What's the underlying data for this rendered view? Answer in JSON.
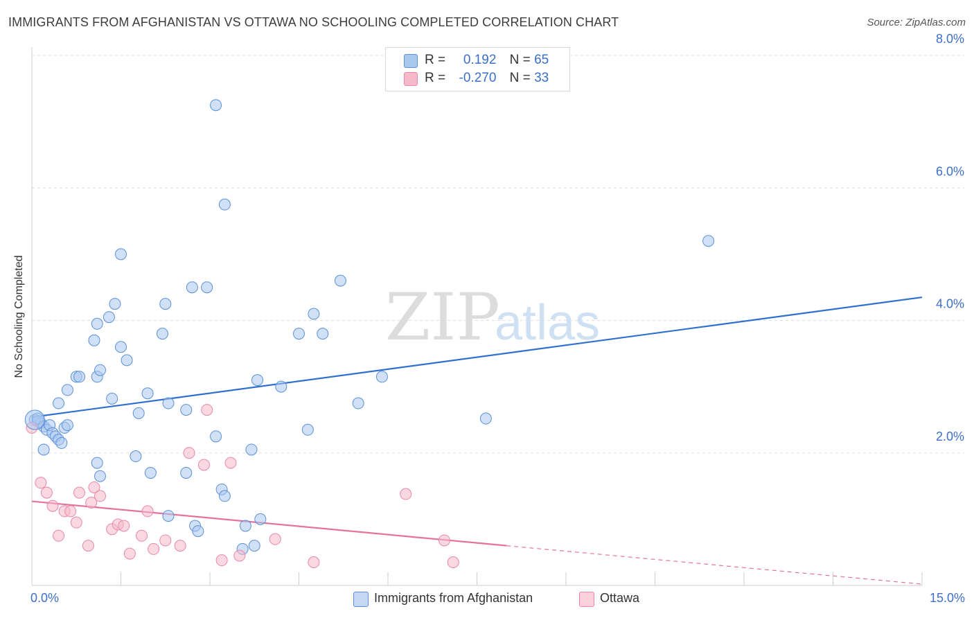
{
  "title": "IMMIGRANTS FROM AFGHANISTAN VS OTTAWA NO SCHOOLING COMPLETED CORRELATION CHART",
  "source": "Source: ZipAtlas.com",
  "watermark": {
    "zip": "ZIP",
    "atlas": "atlas"
  },
  "legend_top": [
    {
      "r_label": "R =",
      "r_value": "0.192",
      "n_label": "N =",
      "n_value": "65",
      "color": "#a9c6ee"
    },
    {
      "r_label": "R =",
      "r_value": "-0.270",
      "n_label": "N =",
      "n_value": "33",
      "color": "#f6b8cb"
    }
  ],
  "legend_bottom": [
    {
      "label": "Immigrants from Afghanistan",
      "color": "#a9c6ee"
    },
    {
      "label": "Ottawa",
      "color": "#f6b8cb"
    }
  ],
  "chart_data": {
    "type": "scatter",
    "title": "IMMIGRANTS FROM AFGHANISTAN VS OTTAWA NO SCHOOLING COMPLETED CORRELATION CHART",
    "xlabel": "",
    "ylabel": "No Schooling Completed",
    "xlim": [
      0,
      15
    ],
    "ylim": [
      0,
      8
    ],
    "x_tick_labels": [
      "0.0%",
      "15.0%"
    ],
    "y_ticks": [
      2,
      4,
      6,
      8
    ],
    "y_tick_labels": [
      "2.0%",
      "4.0%",
      "6.0%",
      "8.0%"
    ],
    "grid": "horizontal dashed",
    "legend": "top-center",
    "series": [
      {
        "name": "Immigrants from Afghanistan",
        "color": "#5b8fd6",
        "fill": "#a9c6ee",
        "r": 0.192,
        "n": 65,
        "trend": {
          "x": [
            0,
            15
          ],
          "y": [
            2.54,
            4.35
          ],
          "style": "solid",
          "line_color": "#2f6fd0"
        },
        "points": [
          [
            0.05,
            2.5
          ],
          [
            0.1,
            2.48
          ],
          [
            0.15,
            2.45
          ],
          [
            0.1,
            2.52
          ],
          [
            0.2,
            2.4
          ],
          [
            0.25,
            2.35
          ],
          [
            0.3,
            2.42
          ],
          [
            0.35,
            2.3
          ],
          [
            0.4,
            2.25
          ],
          [
            0.45,
            2.2
          ],
          [
            0.5,
            2.15
          ],
          [
            0.55,
            2.38
          ],
          [
            0.6,
            2.42
          ],
          [
            0.2,
            2.05
          ],
          [
            0.45,
            2.75
          ],
          [
            0.6,
            2.95
          ],
          [
            0.75,
            3.15
          ],
          [
            0.8,
            3.15
          ],
          [
            1.1,
            3.15
          ],
          [
            1.15,
            3.25
          ],
          [
            1.05,
            3.7
          ],
          [
            1.1,
            3.95
          ],
          [
            1.3,
            4.05
          ],
          [
            1.4,
            4.25
          ],
          [
            1.5,
            3.6
          ],
          [
            1.6,
            3.4
          ],
          [
            1.5,
            5.0
          ],
          [
            1.35,
            2.82
          ],
          [
            1.8,
            2.6
          ],
          [
            1.95,
            2.9
          ],
          [
            2.2,
            3.8
          ],
          [
            2.25,
            4.25
          ],
          [
            2.3,
            2.75
          ],
          [
            2.6,
            2.65
          ],
          [
            2.6,
            1.7
          ],
          [
            2.7,
            4.5
          ],
          [
            2.95,
            4.5
          ],
          [
            3.1,
            7.25
          ],
          [
            3.25,
            5.75
          ],
          [
            3.1,
            2.25
          ],
          [
            3.2,
            1.45
          ],
          [
            3.25,
            1.35
          ],
          [
            3.6,
            0.9
          ],
          [
            3.55,
            0.55
          ],
          [
            3.75,
            0.6
          ],
          [
            3.85,
            1.0
          ],
          [
            3.7,
            2.05
          ],
          [
            3.8,
            3.1
          ],
          [
            4.2,
            3.0
          ],
          [
            4.5,
            3.8
          ],
          [
            4.65,
            2.35
          ],
          [
            4.75,
            4.1
          ],
          [
            4.9,
            3.8
          ],
          [
            5.2,
            4.6
          ],
          [
            5.5,
            2.75
          ],
          [
            5.9,
            3.15
          ],
          [
            7.65,
            2.52
          ],
          [
            11.4,
            5.2
          ],
          [
            2.3,
            1.05
          ],
          [
            2.75,
            0.9
          ],
          [
            2.8,
            0.82
          ],
          [
            1.75,
            1.95
          ],
          [
            1.1,
            1.85
          ],
          [
            1.15,
            1.65
          ],
          [
            2.0,
            1.7
          ]
        ]
      },
      {
        "name": "Ottawa",
        "color": "#e887a6",
        "fill": "#f6b8cb",
        "r": -0.27,
        "n": 33,
        "trend": {
          "x": [
            0,
            8.0
          ],
          "y": [
            1.27,
            0.6
          ],
          "dash_x": [
            8.0,
            15
          ],
          "dash_y": [
            0.6,
            0.02
          ],
          "line_color": "#e4739b"
        },
        "points": [
          [
            0.0,
            2.38
          ],
          [
            0.15,
            1.55
          ],
          [
            0.25,
            1.4
          ],
          [
            0.35,
            1.2
          ],
          [
            0.45,
            0.75
          ],
          [
            0.55,
            1.12
          ],
          [
            0.65,
            1.12
          ],
          [
            0.75,
            0.95
          ],
          [
            0.8,
            1.4
          ],
          [
            0.95,
            0.6
          ],
          [
            1.0,
            1.25
          ],
          [
            1.05,
            1.48
          ],
          [
            1.15,
            1.35
          ],
          [
            1.35,
            0.85
          ],
          [
            1.45,
            0.92
          ],
          [
            1.55,
            0.9
          ],
          [
            1.65,
            0.48
          ],
          [
            1.85,
            0.75
          ],
          [
            1.95,
            1.12
          ],
          [
            2.05,
            0.55
          ],
          [
            2.25,
            0.68
          ],
          [
            2.5,
            0.6
          ],
          [
            2.65,
            2.0
          ],
          [
            2.9,
            1.82
          ],
          [
            2.95,
            2.65
          ],
          [
            3.2,
            0.38
          ],
          [
            3.35,
            1.85
          ],
          [
            3.5,
            0.45
          ],
          [
            4.1,
            0.7
          ],
          [
            4.75,
            0.35
          ],
          [
            6.3,
            1.38
          ],
          [
            6.95,
            0.68
          ],
          [
            7.1,
            0.35
          ]
        ]
      }
    ]
  }
}
